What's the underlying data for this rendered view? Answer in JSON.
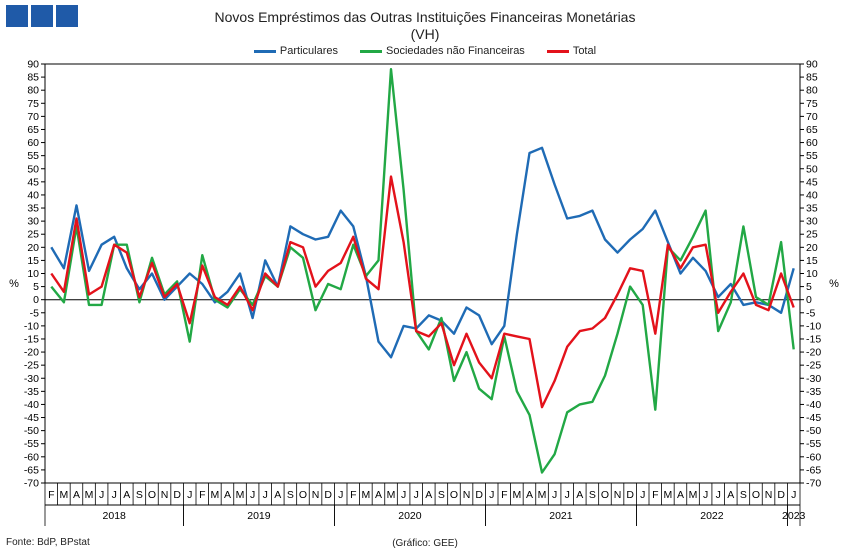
{
  "header": {
    "title": "Novos Empréstimos das Outras Instituições Financeiras Monetárias",
    "subtitle": "(VH)"
  },
  "footer": {
    "source": "Fonte: BdP, BPstat",
    "credit": "(Gráfico: GEE)"
  },
  "colors": {
    "logo": "#1f5aa8",
    "Particulares": "#1f6bb5",
    "Sociedades não Financeiras": "#22a845",
    "Total": "#e3121b"
  },
  "chart_data": {
    "type": "line",
    "title": "Novos Empréstimos das Outras Instituições Financeiras Monetárias",
    "subtitle": "(VH)",
    "ylabel": "%",
    "ylim": [
      -70,
      90
    ],
    "yticks": [
      90,
      85,
      80,
      75,
      70,
      65,
      60,
      55,
      50,
      45,
      40,
      35,
      30,
      25,
      20,
      15,
      10,
      5,
      0,
      -5,
      -10,
      -15,
      -20,
      -25,
      -30,
      -35,
      -40,
      -45,
      -50,
      -55,
      -60,
      -65,
      -70
    ],
    "legend_position": "top",
    "x_months": [
      "F",
      "M",
      "A",
      "M",
      "J",
      "J",
      "A",
      "S",
      "O",
      "N",
      "D",
      "J",
      "F",
      "M",
      "A",
      "M",
      "J",
      "J",
      "A",
      "S",
      "O",
      "N",
      "D",
      "J",
      "F",
      "M",
      "A",
      "M",
      "J",
      "J",
      "A",
      "S",
      "O",
      "N",
      "D",
      "J",
      "F",
      "M",
      "A",
      "M",
      "J",
      "J",
      "A",
      "S",
      "O",
      "N",
      "D",
      "J",
      "F",
      "M",
      "A",
      "M",
      "J",
      "J",
      "A",
      "S",
      "O",
      "N",
      "D",
      "J"
    ],
    "x_years": [
      {
        "label": "2018",
        "start": 0,
        "end": 11
      },
      {
        "label": "2019",
        "start": 11,
        "end": 23
      },
      {
        "label": "2020",
        "start": 23,
        "end": 35
      },
      {
        "label": "2021",
        "start": 35,
        "end": 47
      },
      {
        "label": "2022",
        "start": 47,
        "end": 59
      },
      {
        "label": "2023",
        "start": 59,
        "end": 60
      }
    ],
    "series": [
      {
        "name": "Particulares",
        "values": [
          20,
          12,
          36,
          11,
          21,
          24,
          12,
          4,
          10,
          0,
          5,
          10,
          6,
          -1,
          3,
          10,
          -7,
          15,
          5,
          28,
          25,
          23,
          24,
          34,
          28,
          9,
          -16,
          -22,
          -10,
          -11,
          -6,
          -8,
          -13,
          -3,
          -6,
          -17,
          -10,
          25,
          56,
          58,
          44,
          31,
          32,
          34,
          23,
          18,
          23,
          27,
          34,
          22,
          10,
          16,
          11,
          1,
          6,
          -2,
          -1,
          -2,
          -5,
          12
        ]
      },
      {
        "name": "Sociedades não Financeiras",
        "values": [
          5,
          -1,
          28,
          -2,
          -2,
          21,
          21,
          -1,
          16,
          2,
          7,
          -16,
          17,
          0,
          -3,
          4,
          -2,
          9,
          5,
          20,
          16,
          -4,
          6,
          4,
          21,
          9,
          15,
          88,
          42,
          -12,
          -19,
          -7,
          -31,
          -20,
          -34,
          -38,
          -14,
          -35,
          -44,
          -66,
          -59,
          -43,
          -40,
          -39,
          -29,
          -13,
          5,
          -2,
          -42,
          20,
          15,
          24,
          34,
          -12,
          -1,
          28,
          1,
          -2,
          22,
          -19
        ]
      },
      {
        "name": "Total",
        "values": [
          10,
          3,
          31,
          2,
          5,
          21,
          18,
          1,
          14,
          1,
          6,
          -9,
          13,
          1,
          -2,
          5,
          -4,
          10,
          5,
          22,
          20,
          5,
          11,
          14,
          24,
          8,
          4,
          47,
          22,
          -12,
          -14,
          -9,
          -25,
          -13,
          -24,
          -30,
          -13,
          -14,
          -15,
          -41,
          -31,
          -18,
          -12,
          -11,
          -7,
          2,
          12,
          11,
          -13,
          21,
          12,
          20,
          21,
          -5,
          3,
          10,
          -2,
          -4,
          10,
          -3
        ]
      }
    ]
  }
}
